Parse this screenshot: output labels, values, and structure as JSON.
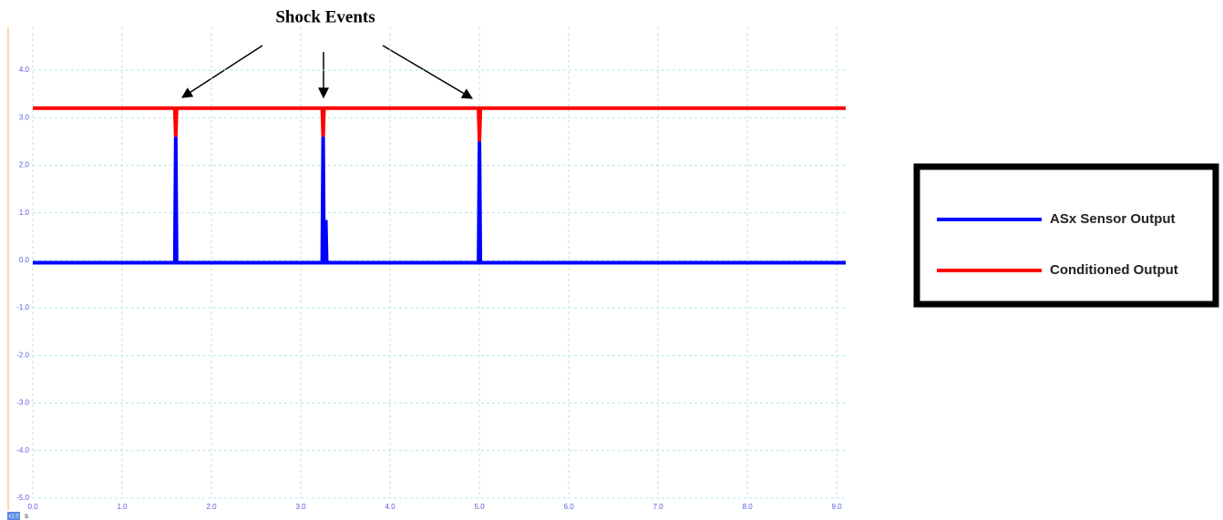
{
  "chart_data": {
    "type": "line",
    "annotation": "Shock Events",
    "x_unit": "s",
    "zoom_label": "x1.0",
    "xlim": [
      0,
      9.1
    ],
    "ylim": [
      -5,
      4.9
    ],
    "xticks": [
      {
        "value": 0,
        "label": "0.0"
      },
      {
        "value": 1,
        "label": "1.0"
      },
      {
        "value": 2,
        "label": "2.0"
      },
      {
        "value": 3,
        "label": "3.0"
      },
      {
        "value": 4,
        "label": "4.0"
      },
      {
        "value": 5,
        "label": "5.0"
      },
      {
        "value": 6,
        "label": "6.0"
      },
      {
        "value": 7,
        "label": "7.0"
      },
      {
        "value": 8,
        "label": "8.0"
      },
      {
        "value": 9,
        "label": "9.0"
      }
    ],
    "yticks": [
      {
        "value": -5,
        "label": "-5.0"
      },
      {
        "value": -4,
        "label": "-4.0"
      },
      {
        "value": -3,
        "label": "-3.0"
      },
      {
        "value": -2,
        "label": "-2.0"
      },
      {
        "value": -1,
        "label": "-1.0"
      },
      {
        "value": 0,
        "label": "0.0"
      },
      {
        "value": 1,
        "label": "1.0"
      },
      {
        "value": 2,
        "label": "2.0"
      },
      {
        "value": 3,
        "label": "3.0"
      },
      {
        "value": 4,
        "label": "4.0"
      }
    ],
    "grid": true,
    "series": [
      {
        "name": "ASx Sensor Output",
        "color": "#0000ff",
        "x": [
          0,
          1.59,
          1.6,
          1.61,
          3.24,
          3.25,
          3.26,
          3.27,
          3.28,
          3.29,
          4.99,
          5.0,
          5.01,
          9.1
        ],
        "values": [
          -0.05,
          -0.05,
          2.6,
          -0.05,
          -0.05,
          2.6,
          -0.05,
          -0.05,
          0.85,
          -0.05,
          -0.05,
          2.5,
          -0.05,
          -0.05
        ]
      },
      {
        "name": "Conditioned Output",
        "color": "#ff0000",
        "x": [
          0,
          1.59,
          1.6,
          1.61,
          3.24,
          3.25,
          3.26,
          4.99,
          5.0,
          5.01,
          9.1
        ],
        "values": [
          3.2,
          3.2,
          2.6,
          3.2,
          3.2,
          2.6,
          3.2,
          3.2,
          2.5,
          3.2,
          3.2
        ]
      }
    ]
  }
}
